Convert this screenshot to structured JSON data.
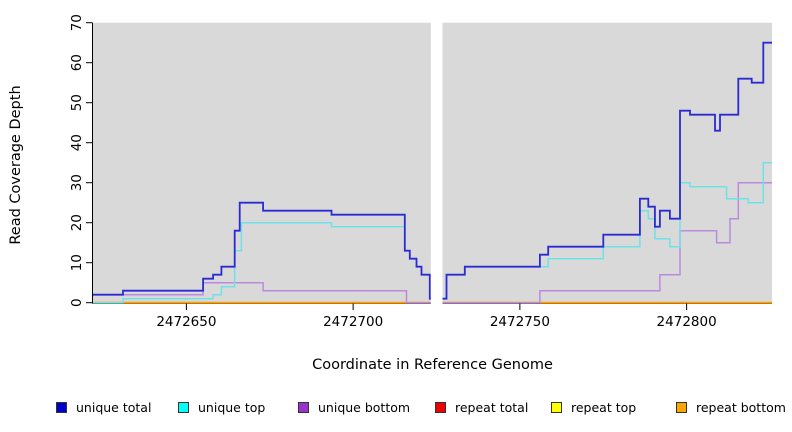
{
  "figure": {
    "background": "#ffffff",
    "panel_background": "#d9d9d9",
    "gap_fill": "#ffffff",
    "axis_color": "#000000"
  },
  "chart_data": {
    "type": "line",
    "subtype": "step-after-coverage-plot",
    "title": "",
    "xlabel": "Coordinate in Reference Genome",
    "ylabel": "Read Coverage Depth",
    "xlim": [
      2472622,
      2472825.6
    ],
    "ylim": [
      0,
      70
    ],
    "x_ticks": [
      2472650,
      2472700,
      2472750,
      2472800
    ],
    "y_ticks": [
      0,
      10,
      20,
      30,
      40,
      50,
      60,
      70
    ],
    "grid": "off",
    "legend_position": "bottom",
    "gap_x": [
      2472723.3,
      2472726.8
    ],
    "series": [
      {
        "name": "repeat total",
        "color": "#cc2222",
        "width": 1.2,
        "points": [
          [
            2472622,
            0
          ]
        ]
      },
      {
        "name": "repeat top",
        "color": "#ffe800",
        "width": 1.2,
        "points": [
          [
            2472622,
            0
          ]
        ]
      },
      {
        "name": "repeat bottom",
        "color": "#ff9d00",
        "width": 1.8,
        "points": [
          [
            2472622,
            0
          ]
        ]
      },
      {
        "name": "unique bottom",
        "color": "#bb8add",
        "width": 1.5,
        "points": [
          [
            2472622,
            2
          ],
          [
            2472655,
            5
          ],
          [
            2472673,
            3
          ],
          [
            2472716,
            0
          ],
          [
            2472756,
            3
          ],
          [
            2472792,
            7
          ],
          [
            2472798,
            18
          ],
          [
            2472809,
            15
          ],
          [
            2472813,
            21
          ],
          [
            2472815.5,
            30
          ]
        ]
      },
      {
        "name": "unique top",
        "color": "#6fe2e8",
        "width": 1.5,
        "points": [
          [
            2472622,
            0
          ],
          [
            2472631,
            1
          ],
          [
            2472658,
            2
          ],
          [
            2472660.5,
            4
          ],
          [
            2472664.5,
            13
          ],
          [
            2472666.5,
            20
          ],
          [
            2472693.5,
            19
          ],
          [
            2472715.5,
            13
          ],
          [
            2472717,
            11
          ],
          [
            2472719,
            9
          ],
          [
            2472720.5,
            7
          ],
          [
            2472723,
            1
          ],
          [
            2472727,
            1
          ],
          [
            2472728,
            7
          ],
          [
            2472733.5,
            9
          ],
          [
            2472758.5,
            11
          ],
          [
            2472775,
            14
          ],
          [
            2472786,
            23
          ],
          [
            2472788.5,
            21
          ],
          [
            2472790.5,
            16
          ],
          [
            2472795,
            14
          ],
          [
            2472798,
            30
          ],
          [
            2472801,
            29
          ],
          [
            2472812,
            26
          ],
          [
            2472818.5,
            25
          ],
          [
            2472823,
            35
          ]
        ]
      },
      {
        "name": "unique total",
        "color": "#2b2bd2",
        "width": 1.8,
        "points": [
          [
            2472622,
            2
          ],
          [
            2472631,
            3
          ],
          [
            2472655,
            6
          ],
          [
            2472658,
            7
          ],
          [
            2472660.5,
            9
          ],
          [
            2472664.5,
            18
          ],
          [
            2472666,
            25
          ],
          [
            2472673,
            23
          ],
          [
            2472693.5,
            22
          ],
          [
            2472715.5,
            13
          ],
          [
            2472717,
            11
          ],
          [
            2472719,
            9
          ],
          [
            2472720.5,
            7
          ],
          [
            2472723,
            1
          ],
          [
            2472727,
            1
          ],
          [
            2472728,
            7
          ],
          [
            2472733.5,
            9
          ],
          [
            2472756,
            12
          ],
          [
            2472758.5,
            14
          ],
          [
            2472775,
            17
          ],
          [
            2472786,
            26
          ],
          [
            2472788.5,
            24
          ],
          [
            2472790.5,
            19
          ],
          [
            2472792,
            23
          ],
          [
            2472795,
            21
          ],
          [
            2472798,
            48
          ],
          [
            2472801,
            47
          ],
          [
            2472808.5,
            43
          ],
          [
            2472810,
            47
          ],
          [
            2472815.5,
            56
          ],
          [
            2472819.5,
            55
          ],
          [
            2472823,
            65
          ]
        ]
      }
    ]
  },
  "legend": {
    "items": [
      {
        "label": "unique total",
        "color": "#0000cc"
      },
      {
        "label": "unique top",
        "color": "#00ffff"
      },
      {
        "label": "unique bottom",
        "color": "#9932cc"
      },
      {
        "label": "repeat total",
        "color": "#ee0000"
      },
      {
        "label": "repeat top",
        "color": "#ffff00"
      },
      {
        "label": "repeat bottom",
        "color": "#ffa500"
      }
    ]
  }
}
